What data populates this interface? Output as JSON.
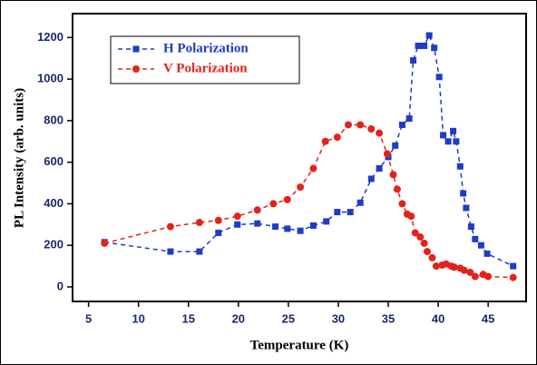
{
  "chart_data": {
    "type": "line",
    "xlabel": "Temperature (K)",
    "ylabel": "PL Intensity (arb. units)",
    "xlim": [
      3.4,
      48.8
    ],
    "xticks": [
      5,
      10,
      15,
      20,
      25,
      30,
      35,
      40,
      45
    ],
    "ylim": [
      -70,
      1315
    ],
    "yticks": [
      0,
      200,
      400,
      600,
      800,
      1000,
      1200
    ],
    "legend": "upper left",
    "series": [
      {
        "name": "H Polarization",
        "color": "#1f3cc4",
        "marker": "square",
        "x": [
          6.6,
          13.2,
          16.1,
          18.0,
          19.9,
          21.9,
          23.7,
          24.9,
          26.2,
          27.5,
          28.8,
          29.9,
          31.2,
          32.2,
          33.3,
          34.1,
          35.0,
          35.7,
          36.4,
          37.1,
          37.5,
          38.0,
          38.6,
          39.1,
          39.6,
          40.1,
          40.5,
          41.0,
          41.5,
          41.8,
          42.2,
          42.5,
          42.8,
          43.3,
          43.7,
          44.3,
          44.9,
          47.5
        ],
        "values": [
          215,
          170,
          170,
          260,
          300,
          305,
          290,
          280,
          270,
          295,
          315,
          360,
          360,
          405,
          520,
          570,
          625,
          680,
          780,
          810,
          1090,
          1160,
          1160,
          1210,
          1150,
          1010,
          730,
          700,
          750,
          700,
          580,
          450,
          380,
          290,
          230,
          200,
          160,
          100
        ]
      },
      {
        "name": "V Polarization",
        "color": "#e3231b",
        "marker": "circle",
        "x": [
          6.6,
          13.2,
          16.1,
          18.0,
          19.9,
          21.9,
          23.5,
          24.9,
          26.2,
          27.5,
          28.7,
          29.9,
          31.0,
          32.2,
          33.3,
          34.1,
          34.9,
          35.5,
          35.9,
          36.4,
          36.9,
          37.3,
          37.7,
          38.2,
          38.6,
          38.9,
          39.4,
          39.8,
          40.4,
          40.8,
          41.3,
          41.6,
          42.2,
          42.6,
          43.2,
          43.7,
          44.5,
          45.0,
          47.5
        ],
        "values": [
          210,
          290,
          310,
          320,
          340,
          370,
          400,
          420,
          480,
          570,
          700,
          720,
          780,
          780,
          760,
          740,
          640,
          540,
          470,
          400,
          350,
          340,
          260,
          240,
          210,
          170,
          140,
          100,
          105,
          110,
          100,
          95,
          90,
          80,
          70,
          50,
          60,
          50,
          45
        ]
      }
    ]
  }
}
